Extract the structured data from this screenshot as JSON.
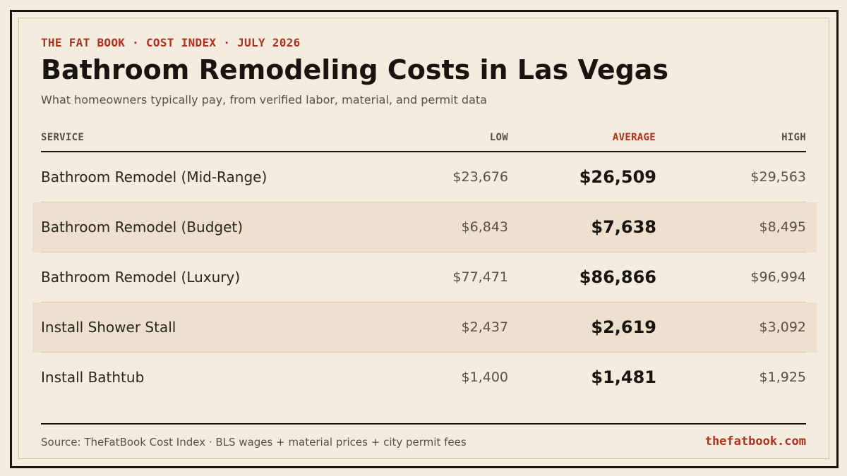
{
  "header": {
    "eyebrow": "THE FAT BOOK · COST INDEX · JULY 2026",
    "title": "Bathroom Remodeling Costs in Las Vegas",
    "subtitle": "What homeowners typically pay, from verified labor, material, and permit data"
  },
  "table": {
    "columns": {
      "service": "SERVICE",
      "low": "LOW",
      "average": "AVERAGE",
      "high": "HIGH"
    },
    "rows": [
      {
        "service": "Bathroom Remodel (Mid-Range)",
        "low": "$23,676",
        "average": "$26,509",
        "high": "$29,563"
      },
      {
        "service": "Bathroom Remodel (Budget)",
        "low": "$6,843",
        "average": "$7,638",
        "high": "$8,495"
      },
      {
        "service": "Bathroom Remodel (Luxury)",
        "low": "$77,471",
        "average": "$86,866",
        "high": "$96,994"
      },
      {
        "service": "Install Shower Stall",
        "low": "$2,437",
        "average": "$2,619",
        "high": "$3,092"
      },
      {
        "service": "Install Bathtub",
        "low": "$1,400",
        "average": "$1,481",
        "high": "$1,925"
      }
    ]
  },
  "footer": {
    "source": "Source: TheFatBook Cost Index · BLS wages + material prices + city permit fees",
    "site": "thefatbook.com"
  },
  "colors": {
    "background": "#f4ecdf",
    "accent": "#b0301c",
    "ink": "#1a1410",
    "row_shade": "#ece1ce"
  }
}
